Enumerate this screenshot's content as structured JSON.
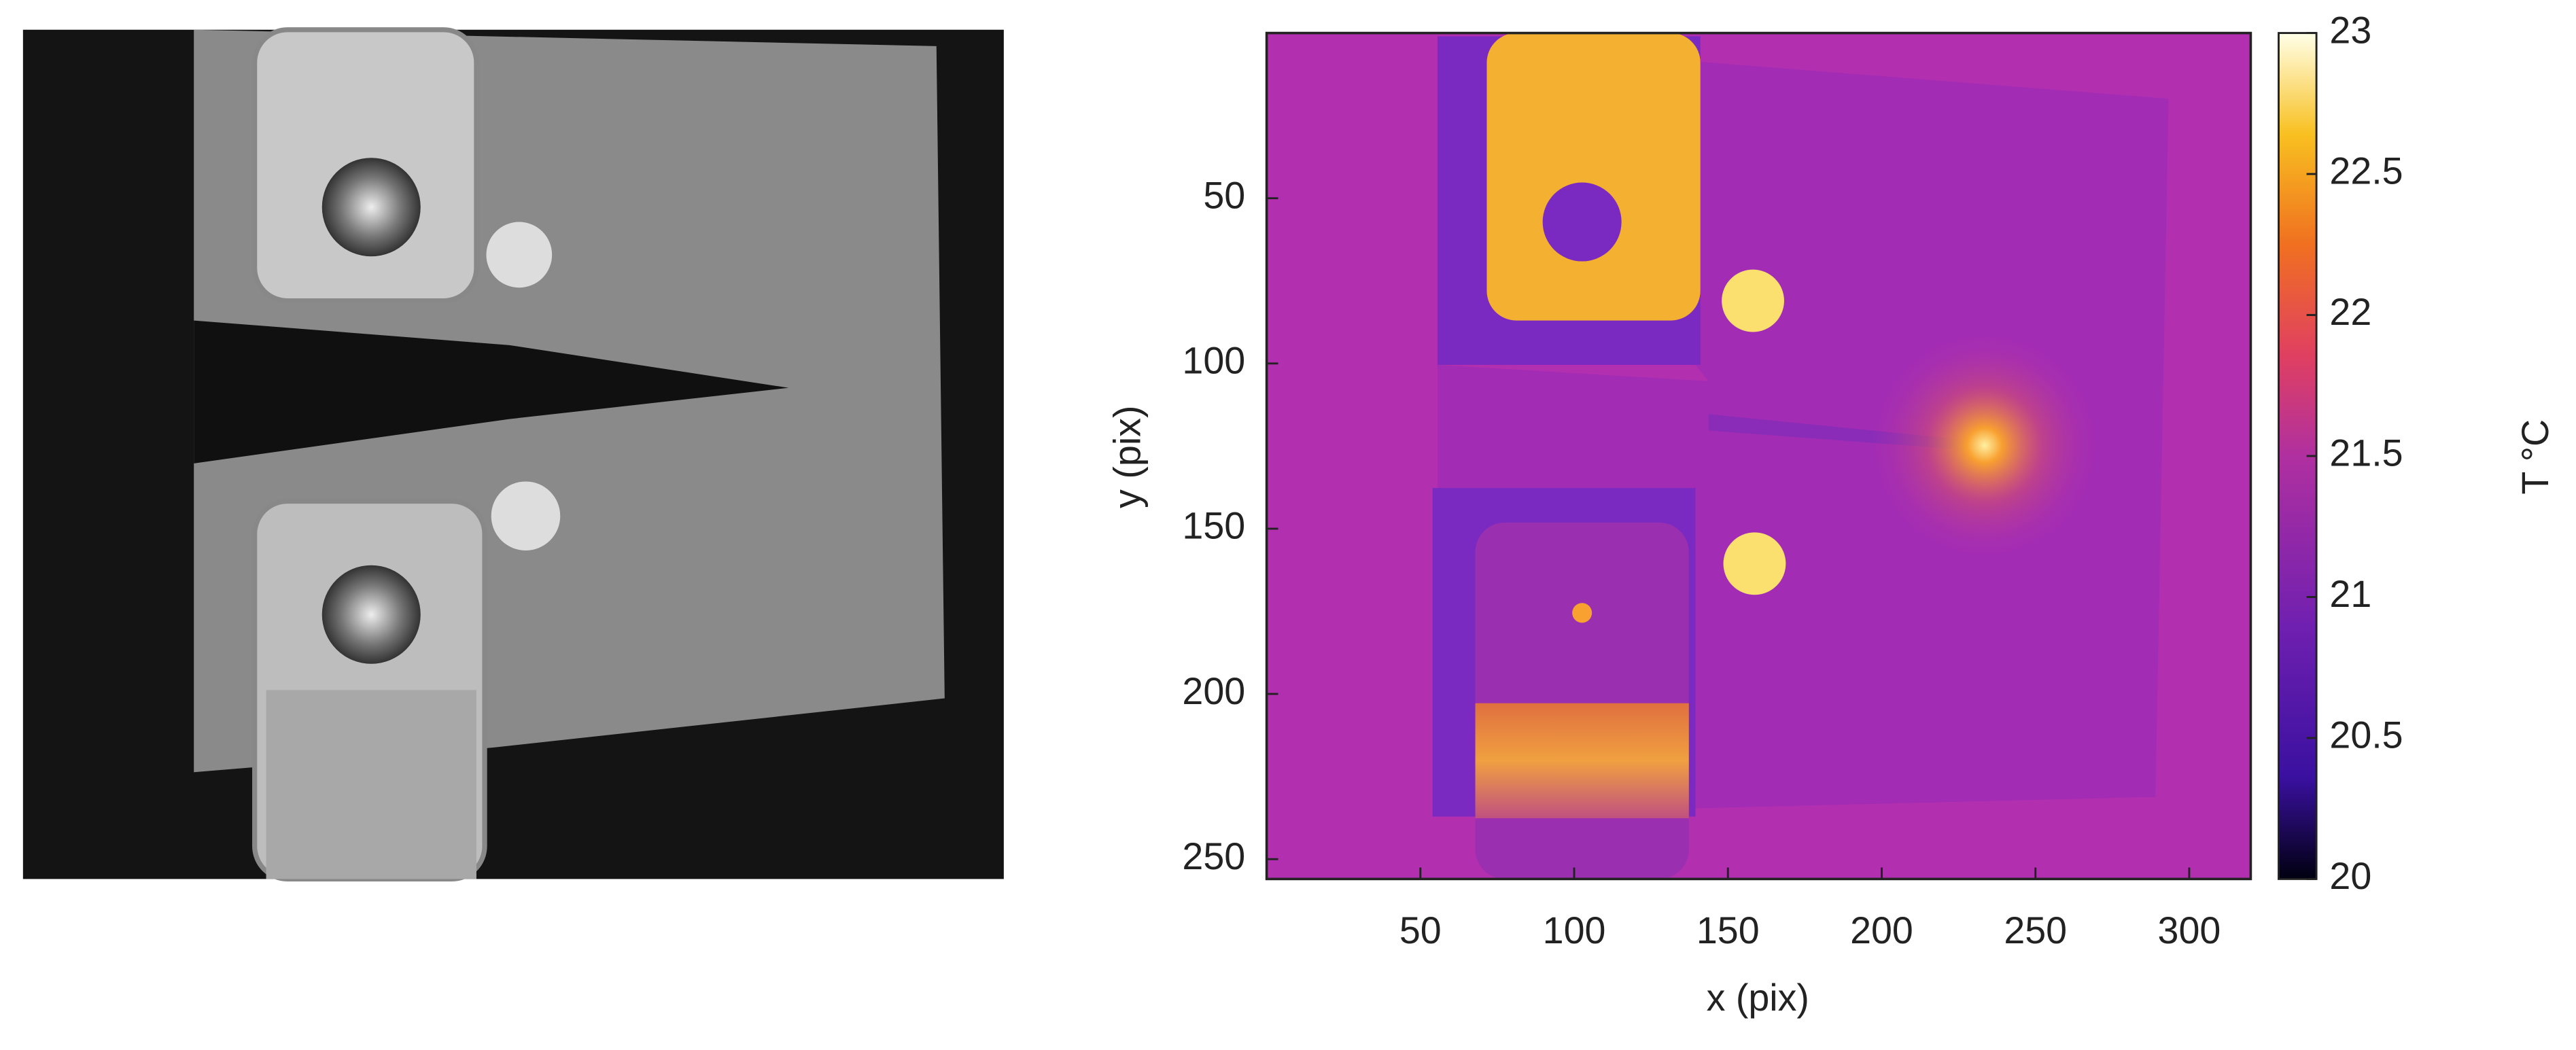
{
  "chart_data": {
    "type": "image",
    "xlabel": "x (pix)",
    "ylabel": "y (pix)",
    "xlim": [
      0,
      320
    ],
    "ylim": [
      0,
      256
    ],
    "xticks": [
      50,
      100,
      150,
      200,
      250,
      300
    ],
    "yticks": [
      50,
      100,
      150,
      200,
      250
    ],
    "colorbar": {
      "label": "T °C",
      "lim": [
        20,
        23
      ],
      "ticks": [
        20,
        20.5,
        21,
        21.5,
        22,
        22.5,
        23
      ]
    }
  }
}
